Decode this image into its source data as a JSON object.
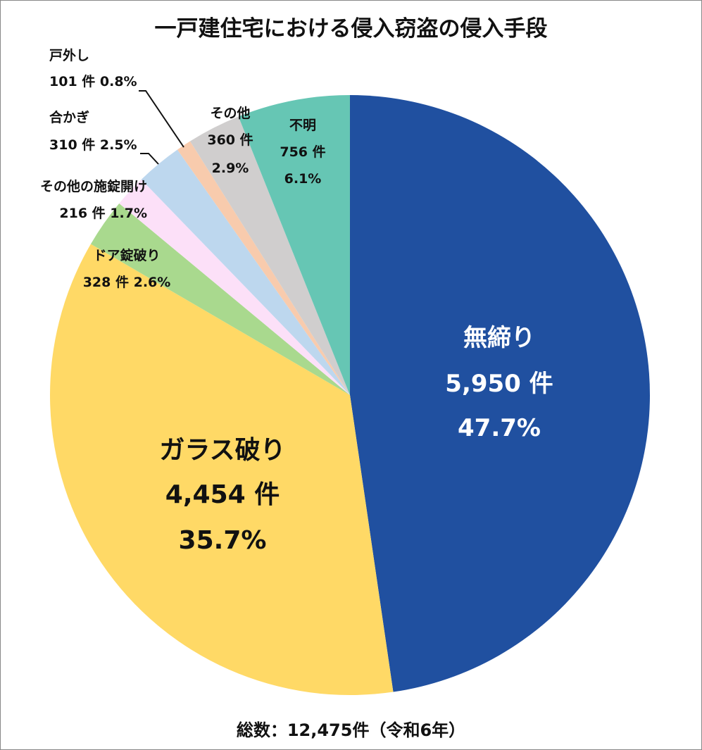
{
  "chart_data": {
    "type": "pie",
    "title": "一戸建住宅における侵入窃盗の侵入手段",
    "footer": "総数：12,475件（令和6年）",
    "start": "top",
    "direction": "clockwise",
    "legend": "none",
    "slices": [
      {
        "name": "無締り",
        "value": 5950,
        "count_label": "5,950 件",
        "percent_label": "47.7%",
        "color": "#2050A0"
      },
      {
        "name": "ガラス破り",
        "value": 4454,
        "count_label": "4,454 件",
        "percent_label": "35.7%",
        "color": "#FFD966"
      },
      {
        "name": "ドア錠破り",
        "value": 328,
        "count_label": "328 件",
        "percent_label": "2.6%",
        "color": "#A9D98E"
      },
      {
        "name": "その他の施錠開け",
        "value": 216,
        "count_label": "216 件",
        "percent_label": "1.7%",
        "color": "#FCE0F8"
      },
      {
        "name": "合かぎ",
        "value": 310,
        "count_label": "310 件",
        "percent_label": "2.5%",
        "color": "#BDD7EE"
      },
      {
        "name": "戸外し",
        "value": 101,
        "count_label": "101 件",
        "percent_label": "0.8%",
        "color": "#F8CBAD"
      },
      {
        "name": "その他",
        "value": 360,
        "count_label": "360 件",
        "percent_label": "2.9%",
        "color": "#D0CECE"
      },
      {
        "name": "不明",
        "value": 756,
        "count_label": "756 件",
        "percent_label": "6.1%",
        "color": "#66C6B4"
      }
    ]
  }
}
